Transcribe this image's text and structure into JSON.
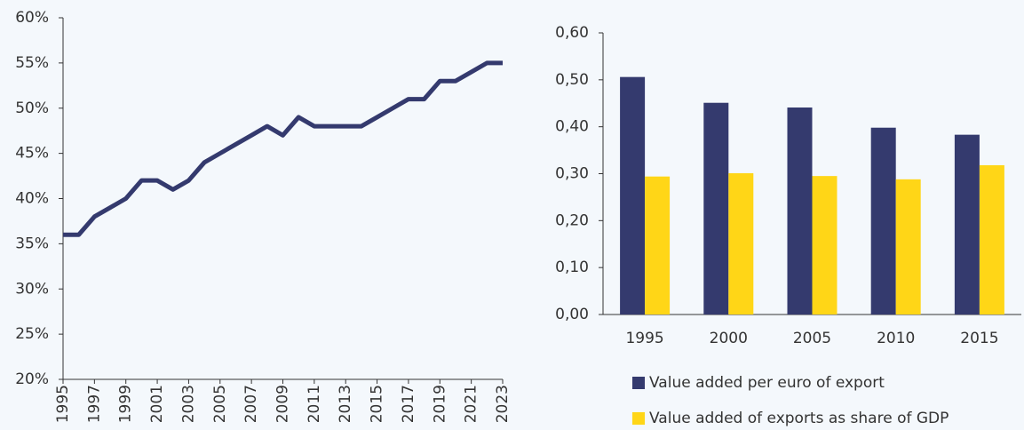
{
  "chart_data": [
    {
      "type": "line",
      "x": [
        1995,
        1996,
        1997,
        1998,
        1999,
        2000,
        2001,
        2002,
        2003,
        2004,
        2005,
        2006,
        2007,
        2008,
        2009,
        2010,
        2011,
        2012,
        2013,
        2014,
        2015,
        2016,
        2017,
        2018,
        2019,
        2020,
        2021,
        2022,
        2023
      ],
      "series": [
        {
          "color": "#343a6e",
          "values": [
            36,
            36,
            38,
            39,
            40,
            42,
            42,
            41,
            42,
            44,
            45,
            46,
            47,
            48,
            47,
            49,
            48,
            48,
            48,
            48,
            49,
            50,
            51,
            51,
            53,
            53,
            54,
            55,
            55
          ]
        }
      ],
      "xlim": [
        1995,
        2023
      ],
      "xticks": [
        1995,
        1997,
        1999,
        2001,
        2003,
        2005,
        2007,
        2009,
        2011,
        2013,
        2015,
        2017,
        2019,
        2021,
        2023
      ],
      "ylim": [
        20,
        60
      ],
      "yticks": [
        {
          "value": 20,
          "label": "20%"
        },
        {
          "value": 25,
          "label": "25%"
        },
        {
          "value": 30,
          "label": "30%"
        },
        {
          "value": 35,
          "label": "35%"
        },
        {
          "value": 40,
          "label": "40%"
        },
        {
          "value": 45,
          "label": "45%"
        },
        {
          "value": 50,
          "label": "50%"
        },
        {
          "value": 55,
          "label": "55%"
        },
        {
          "value": 60,
          "label": "60%"
        }
      ]
    },
    {
      "type": "bar",
      "categories": [
        "1995",
        "2000",
        "2005",
        "2010",
        "2015"
      ],
      "series": [
        {
          "name": "Value added per euro of export",
          "color": "#343a6e",
          "values": [
            0.506,
            0.451,
            0.441,
            0.398,
            0.383
          ]
        },
        {
          "name": "Value added of exports as share of GDP",
          "color": "#ffd617",
          "values": [
            0.294,
            0.301,
            0.295,
            0.288,
            0.318
          ]
        }
      ],
      "ylim": [
        0,
        0.6
      ],
      "yticks": [
        {
          "value": 0,
          "label": "0,00"
        },
        {
          "value": 0.1,
          "label": "0,10"
        },
        {
          "value": 0.2,
          "label": "0,20"
        },
        {
          "value": 0.3,
          "label": "0,30"
        },
        {
          "value": 0.4,
          "label": "0,40"
        },
        {
          "value": 0.5,
          "label": "0,50"
        },
        {
          "value": 0.6,
          "label": "0,60"
        }
      ]
    }
  ]
}
